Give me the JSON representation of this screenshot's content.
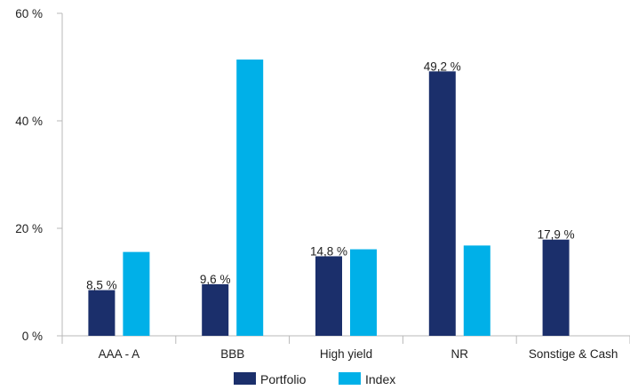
{
  "chart_data": {
    "type": "bar",
    "categories": [
      "AAA - A",
      "BBB",
      "High yield",
      "NR",
      "Sonstige & Cash"
    ],
    "series": [
      {
        "name": "Portfolio",
        "values": [
          8.5,
          9.6,
          14.8,
          49.2,
          17.9
        ],
        "color": "#1b2f6b",
        "labels": [
          "8,5 %",
          "9,6 %",
          "14,8 %",
          "49,2 %",
          "17,9 %"
        ]
      },
      {
        "name": "Index",
        "values": [
          15.6,
          51.4,
          16.1,
          16.8,
          null
        ],
        "color": "#00b0e8"
      }
    ],
    "ylim": [
      0,
      60
    ],
    "yticks": [
      0,
      20,
      40,
      60
    ],
    "ytick_labels": [
      "0 %",
      "20 %",
      "40 %",
      "60 %"
    ],
    "legend_position": "bottom-center",
    "grid": false
  }
}
